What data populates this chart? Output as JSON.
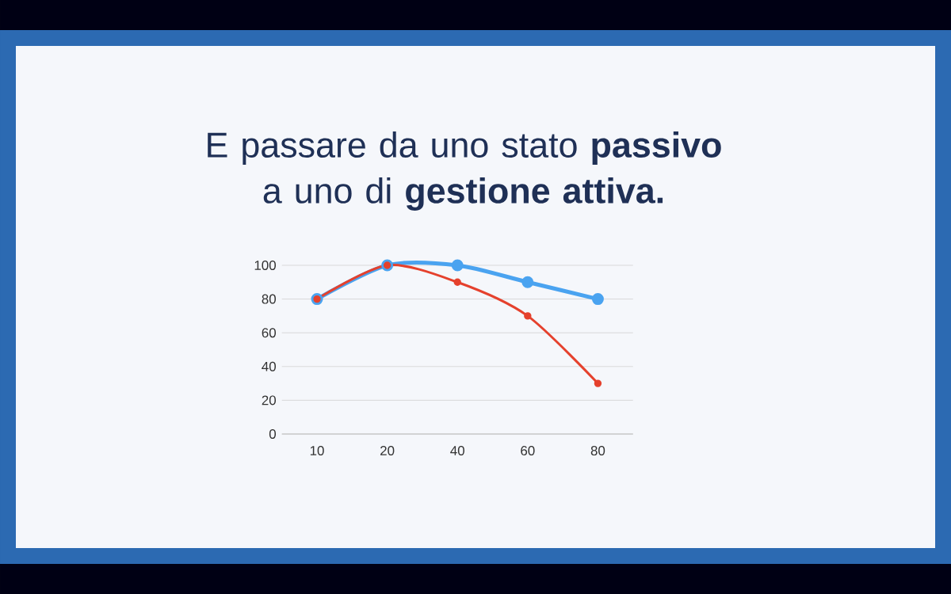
{
  "chart_data": {
    "type": "line",
    "title": "E passare da uno stato **passivo** a uno di **gestione attiva.**",
    "categories": [
      "10",
      "20",
      "40",
      "60",
      "80"
    ],
    "series": [
      {
        "color": "#4aa3f0",
        "values": [
          80,
          100,
          100,
          90,
          80
        ]
      },
      {
        "color": "#e5412d",
        "values": [
          80,
          100,
          90,
          70,
          30
        ]
      }
    ],
    "ylim": [
      0,
      100
    ],
    "yticks": [
      0,
      20,
      40,
      60,
      80,
      100
    ],
    "grid": "y",
    "marker": "circle",
    "line_style": "solid"
  }
}
